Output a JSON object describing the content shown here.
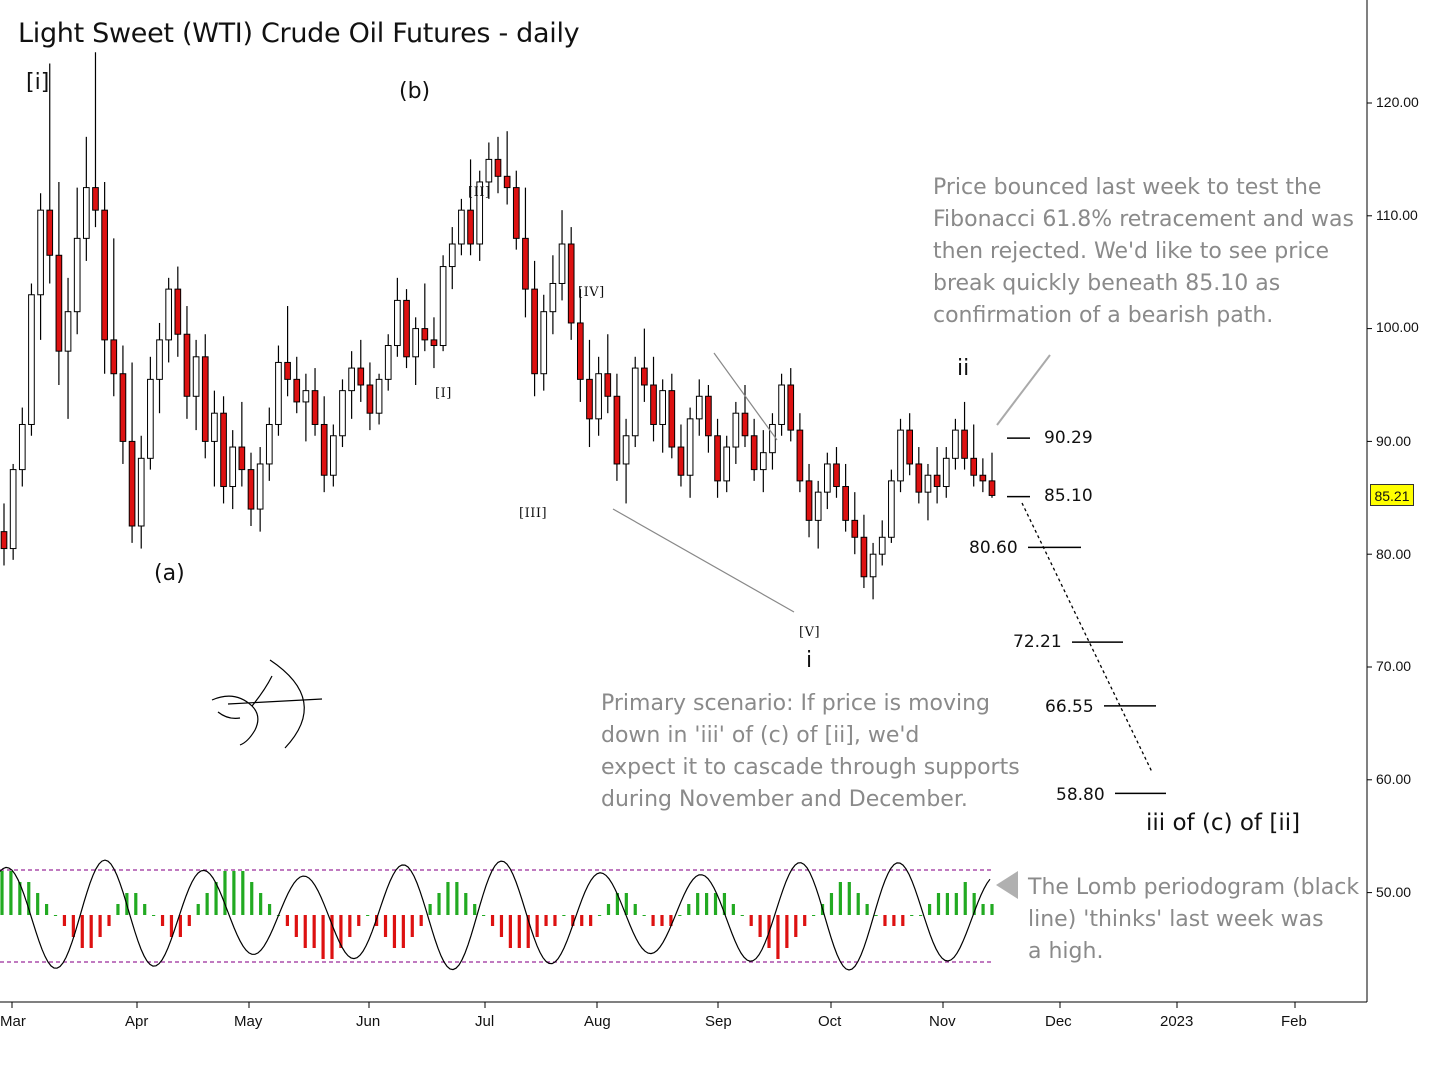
{
  "chart_data": {
    "type": "candlestick",
    "title": "Light Sweet (WTI) Crude Oil Futures - daily",
    "y_axis": {
      "ylim": [
        42,
        130
      ],
      "ticks": [
        "120.00",
        "110.00",
        "100.00",
        "90.00",
        "80.00",
        "70.00",
        "60.00",
        "50.00"
      ]
    },
    "x_axis": {
      "tick_labels": [
        "Mar",
        "Apr",
        "May",
        "Jun",
        "Jul",
        "Aug",
        "Sep",
        "Oct",
        "Nov",
        "Dec",
        "2023",
        "Feb"
      ]
    },
    "last_price": "85.21",
    "colors": {
      "up": "#ffffff",
      "down": "#dd1111",
      "wick": "#000000",
      "green_bar": "#22aa22",
      "red_bar": "#dd1111",
      "dashed_band": "#9a2a9a",
      "annotation": "#8a8a8a"
    },
    "candles": [
      {
        "o": 82.0,
        "h": 84.5,
        "l": 79.0,
        "c": 80.5
      },
      {
        "o": 80.5,
        "h": 88.0,
        "l": 79.5,
        "c": 87.5
      },
      {
        "o": 87.5,
        "h": 93.0,
        "l": 86.0,
        "c": 91.5
      },
      {
        "o": 91.5,
        "h": 104.0,
        "l": 90.5,
        "c": 103.0
      },
      {
        "o": 103.0,
        "h": 112.0,
        "l": 99.0,
        "c": 110.5
      },
      {
        "o": 110.5,
        "h": 123.5,
        "l": 104.0,
        "c": 106.5
      },
      {
        "o": 106.5,
        "h": 113.0,
        "l": 95.0,
        "c": 98.0
      },
      {
        "o": 98.0,
        "h": 104.5,
        "l": 92.0,
        "c": 101.5
      },
      {
        "o": 101.5,
        "h": 112.5,
        "l": 99.5,
        "c": 108.0
      },
      {
        "o": 108.0,
        "h": 117.0,
        "l": 106.0,
        "c": 112.5
      },
      {
        "o": 112.5,
        "h": 124.5,
        "l": 109.0,
        "c": 110.5
      },
      {
        "o": 110.5,
        "h": 113.0,
        "l": 96.0,
        "c": 99.0
      },
      {
        "o": 99.0,
        "h": 108.0,
        "l": 94.0,
        "c": 96.0
      },
      {
        "o": 96.0,
        "h": 98.5,
        "l": 88.0,
        "c": 90.0
      },
      {
        "o": 90.0,
        "h": 97.0,
        "l": 81.0,
        "c": 82.5
      },
      {
        "o": 82.5,
        "h": 90.5,
        "l": 80.5,
        "c": 88.5
      },
      {
        "o": 88.5,
        "h": 97.5,
        "l": 87.5,
        "c": 95.5
      },
      {
        "o": 95.5,
        "h": 100.5,
        "l": 92.5,
        "c": 99.0
      },
      {
        "o": 99.0,
        "h": 104.5,
        "l": 97.0,
        "c": 103.5
      },
      {
        "o": 103.5,
        "h": 105.5,
        "l": 97.5,
        "c": 99.5
      },
      {
        "o": 99.5,
        "h": 102.0,
        "l": 92.0,
        "c": 94.0
      },
      {
        "o": 94.0,
        "h": 99.0,
        "l": 91.0,
        "c": 97.5
      },
      {
        "o": 97.5,
        "h": 99.5,
        "l": 88.5,
        "c": 90.0
      },
      {
        "o": 90.0,
        "h": 94.5,
        "l": 86.0,
        "c": 92.5
      },
      {
        "o": 92.5,
        "h": 94.0,
        "l": 84.5,
        "c": 86.0
      },
      {
        "o": 86.0,
        "h": 91.0,
        "l": 84.0,
        "c": 89.5
      },
      {
        "o": 89.5,
        "h": 93.5,
        "l": 86.0,
        "c": 87.5
      },
      {
        "o": 87.5,
        "h": 89.0,
        "l": 82.5,
        "c": 84.0
      },
      {
        "o": 84.0,
        "h": 89.5,
        "l": 82.0,
        "c": 88.0
      },
      {
        "o": 88.0,
        "h": 93.0,
        "l": 86.5,
        "c": 91.5
      },
      {
        "o": 91.5,
        "h": 98.5,
        "l": 90.5,
        "c": 97.0
      },
      {
        "o": 97.0,
        "h": 102.0,
        "l": 94.0,
        "c": 95.5
      },
      {
        "o": 95.5,
        "h": 97.5,
        "l": 92.5,
        "c": 93.5
      },
      {
        "o": 93.5,
        "h": 96.0,
        "l": 90.0,
        "c": 94.5
      },
      {
        "o": 94.5,
        "h": 96.5,
        "l": 90.5,
        "c": 91.5
      },
      {
        "o": 91.5,
        "h": 94.0,
        "l": 85.5,
        "c": 87.0
      },
      {
        "o": 87.0,
        "h": 91.5,
        "l": 86.0,
        "c": 90.5
      },
      {
        "o": 90.5,
        "h": 95.5,
        "l": 89.5,
        "c": 94.5
      },
      {
        "o": 94.5,
        "h": 98.0,
        "l": 92.0,
        "c": 96.5
      },
      {
        "o": 96.5,
        "h": 99.0,
        "l": 93.5,
        "c": 95.0
      },
      {
        "o": 95.0,
        "h": 97.0,
        "l": 91.0,
        "c": 92.5
      },
      {
        "o": 92.5,
        "h": 96.0,
        "l": 91.5,
        "c": 95.5
      },
      {
        "o": 95.5,
        "h": 99.5,
        "l": 94.5,
        "c": 98.5
      },
      {
        "o": 98.5,
        "h": 104.5,
        "l": 97.5,
        "c": 102.5
      },
      {
        "o": 102.5,
        "h": 103.5,
        "l": 96.5,
        "c": 97.5
      },
      {
        "o": 97.5,
        "h": 101.0,
        "l": 95.0,
        "c": 100.0
      },
      {
        "o": 100.0,
        "h": 104.0,
        "l": 98.0,
        "c": 99.0
      },
      {
        "o": 99.0,
        "h": 101.0,
        "l": 96.5,
        "c": 98.5
      },
      {
        "o": 98.5,
        "h": 106.5,
        "l": 98.0,
        "c": 105.5
      },
      {
        "o": 105.5,
        "h": 109.0,
        "l": 103.5,
        "c": 107.5
      },
      {
        "o": 107.5,
        "h": 111.5,
        "l": 106.5,
        "c": 110.5
      },
      {
        "o": 110.5,
        "h": 115.0,
        "l": 106.5,
        "c": 107.5
      },
      {
        "o": 107.5,
        "h": 114.0,
        "l": 106.0,
        "c": 113.0
      },
      {
        "o": 113.0,
        "h": 116.5,
        "l": 111.5,
        "c": 115.0
      },
      {
        "o": 115.0,
        "h": 117.0,
        "l": 112.0,
        "c": 113.5
      },
      {
        "o": 113.5,
        "h": 117.5,
        "l": 111.0,
        "c": 112.5
      },
      {
        "o": 112.5,
        "h": 114.0,
        "l": 107.0,
        "c": 108.0
      },
      {
        "o": 108.0,
        "h": 112.5,
        "l": 101.0,
        "c": 103.5
      },
      {
        "o": 103.5,
        "h": 106.0,
        "l": 94.0,
        "c": 96.0
      },
      {
        "o": 96.0,
        "h": 103.0,
        "l": 94.5,
        "c": 101.5
      },
      {
        "o": 101.5,
        "h": 106.5,
        "l": 99.5,
        "c": 104.0
      },
      {
        "o": 104.0,
        "h": 110.5,
        "l": 102.5,
        "c": 107.5
      },
      {
        "o": 107.5,
        "h": 109.0,
        "l": 99.0,
        "c": 100.5
      },
      {
        "o": 100.5,
        "h": 103.5,
        "l": 93.5,
        "c": 95.5
      },
      {
        "o": 95.5,
        "h": 99.0,
        "l": 89.5,
        "c": 92.0
      },
      {
        "o": 92.0,
        "h": 97.5,
        "l": 90.5,
        "c": 96.0
      },
      {
        "o": 96.0,
        "h": 99.5,
        "l": 92.5,
        "c": 94.0
      },
      {
        "o": 94.0,
        "h": 96.0,
        "l": 86.5,
        "c": 88.0
      },
      {
        "o": 88.0,
        "h": 92.0,
        "l": 84.5,
        "c": 90.5
      },
      {
        "o": 90.5,
        "h": 97.5,
        "l": 89.5,
        "c": 96.5
      },
      {
        "o": 96.5,
        "h": 100.0,
        "l": 93.5,
        "c": 95.0
      },
      {
        "o": 95.0,
        "h": 97.5,
        "l": 90.0,
        "c": 91.5
      },
      {
        "o": 91.5,
        "h": 95.5,
        "l": 89.0,
        "c": 94.5
      },
      {
        "o": 94.5,
        "h": 96.0,
        "l": 88.5,
        "c": 89.5
      },
      {
        "o": 89.5,
        "h": 91.5,
        "l": 86.0,
        "c": 87.0
      },
      {
        "o": 87.0,
        "h": 93.0,
        "l": 85.0,
        "c": 92.0
      },
      {
        "o": 92.0,
        "h": 95.5,
        "l": 90.5,
        "c": 94.0
      },
      {
        "o": 94.0,
        "h": 95.0,
        "l": 89.0,
        "c": 90.5
      },
      {
        "o": 90.5,
        "h": 92.0,
        "l": 85.0,
        "c": 86.5
      },
      {
        "o": 86.5,
        "h": 90.5,
        "l": 85.5,
        "c": 89.5
      },
      {
        "o": 89.5,
        "h": 93.5,
        "l": 88.0,
        "c": 92.5
      },
      {
        "o": 92.5,
        "h": 95.0,
        "l": 89.5,
        "c": 90.5
      },
      {
        "o": 90.5,
        "h": 92.0,
        "l": 86.5,
        "c": 87.5
      },
      {
        "o": 87.5,
        "h": 91.0,
        "l": 85.5,
        "c": 89.0
      },
      {
        "o": 89.0,
        "h": 92.5,
        "l": 87.5,
        "c": 91.5
      },
      {
        "o": 91.5,
        "h": 96.0,
        "l": 90.5,
        "c": 95.0
      },
      {
        "o": 95.0,
        "h": 96.5,
        "l": 90.0,
        "c": 91.0
      },
      {
        "o": 91.0,
        "h": 92.5,
        "l": 85.5,
        "c": 86.5
      },
      {
        "o": 86.5,
        "h": 88.0,
        "l": 81.5,
        "c": 83.0
      },
      {
        "o": 83.0,
        "h": 86.5,
        "l": 80.5,
        "c": 85.5
      },
      {
        "o": 85.5,
        "h": 89.0,
        "l": 84.0,
        "c": 88.0
      },
      {
        "o": 88.0,
        "h": 89.5,
        "l": 85.0,
        "c": 86.0
      },
      {
        "o": 86.0,
        "h": 88.0,
        "l": 82.0,
        "c": 83.0
      },
      {
        "o": 83.0,
        "h": 85.5,
        "l": 80.0,
        "c": 81.5
      },
      {
        "o": 81.5,
        "h": 83.5,
        "l": 77.0,
        "c": 78.0
      },
      {
        "o": 78.0,
        "h": 81.0,
        "l": 76.0,
        "c": 80.0
      },
      {
        "o": 80.0,
        "h": 83.0,
        "l": 79.0,
        "c": 81.5
      },
      {
        "o": 81.5,
        "h": 87.5,
        "l": 81.0,
        "c": 86.5
      },
      {
        "o": 86.5,
        "h": 92.0,
        "l": 85.5,
        "c": 91.0
      },
      {
        "o": 91.0,
        "h": 92.5,
        "l": 87.0,
        "c": 88.0
      },
      {
        "o": 88.0,
        "h": 89.5,
        "l": 84.5,
        "c": 85.5
      },
      {
        "o": 85.5,
        "h": 88.0,
        "l": 83.0,
        "c": 87.0
      },
      {
        "o": 87.0,
        "h": 89.5,
        "l": 84.5,
        "c": 86.0
      },
      {
        "o": 86.0,
        "h": 89.5,
        "l": 85.0,
        "c": 88.5
      },
      {
        "o": 88.5,
        "h": 92.0,
        "l": 87.5,
        "c": 91.0
      },
      {
        "o": 91.0,
        "h": 93.5,
        "l": 87.5,
        "c": 88.5
      },
      {
        "o": 88.5,
        "h": 91.5,
        "l": 86.0,
        "c": 87.0
      },
      {
        "o": 87.0,
        "h": 88.5,
        "l": 85.5,
        "c": 86.5
      },
      {
        "o": 86.5,
        "h": 89.0,
        "l": 85.0,
        "c": 85.21
      }
    ],
    "histogram": [
      4,
      4,
      3,
      3,
      2,
      1,
      0,
      -1,
      -2,
      -3,
      -3,
      -2,
      -1,
      1,
      2,
      2,
      1,
      0,
      -1,
      -2,
      -2,
      -1,
      1,
      2,
      3,
      4,
      4,
      4,
      3,
      2,
      1,
      0,
      -1,
      -2,
      -3,
      -3,
      -4,
      -4,
      -3,
      -2,
      -1,
      0,
      -1,
      -2,
      -3,
      -3,
      -2,
      -1,
      1,
      2,
      3,
      3,
      2,
      1,
      0,
      -1,
      -2,
      -3,
      -3,
      -3,
      -2,
      -1,
      -1,
      0,
      -1,
      -1,
      -1,
      0,
      1,
      2,
      2,
      1,
      0,
      -1,
      -1,
      -1,
      0,
      1,
      2,
      2,
      2,
      2,
      1,
      0,
      -1,
      -2,
      -3,
      -4,
      -3,
      -2,
      -1,
      0,
      1,
      2,
      3,
      3,
      2,
      1,
      0,
      -1,
      -1,
      -1,
      0,
      0,
      1,
      2,
      2,
      2,
      3,
      2,
      1,
      1
    ]
  },
  "wave_labels": {
    "i_bracket": "[i]",
    "b_paren": "(b)",
    "a_paren": "(a)",
    "II_bracket": "[II]",
    "I_bracket": "[I]",
    "III_bracket": "[III]",
    "IV_bracket": "[IV]",
    "V_bracket": "[V]",
    "i_small": "i",
    "ii_small": "ii"
  },
  "levels": [
    {
      "label": "90.29",
      "value": 90.29
    },
    {
      "label": "85.10",
      "value": 85.1
    },
    {
      "label": "80.60",
      "value": 80.6
    },
    {
      "label": "72.21",
      "value": 72.21
    },
    {
      "label": "66.55",
      "value": 66.55
    },
    {
      "label": "58.80",
      "value": 58.8
    }
  ],
  "target_label": "iii  of (c) of [ii]",
  "notes": {
    "top": [
      "Price bounced last week to test the",
      "Fibonacci 61.8% retracement and was",
      "then rejected. We'd like to see price",
      "break quickly beneath 85.10 as",
      "confirmation of a bearish path."
    ],
    "middle": [
      "Primary scenario: If price is moving",
      "down in 'iii' of (c) of [ii], we'd",
      "expect it to cascade through supports",
      "during November and December."
    ],
    "bottom": [
      "The Lomb periodogram (black",
      "line) 'thinks' last week was",
      "a high."
    ]
  },
  "icons": {
    "logo": "archer-logo-icon",
    "pointer": "left-arrow-icon"
  }
}
